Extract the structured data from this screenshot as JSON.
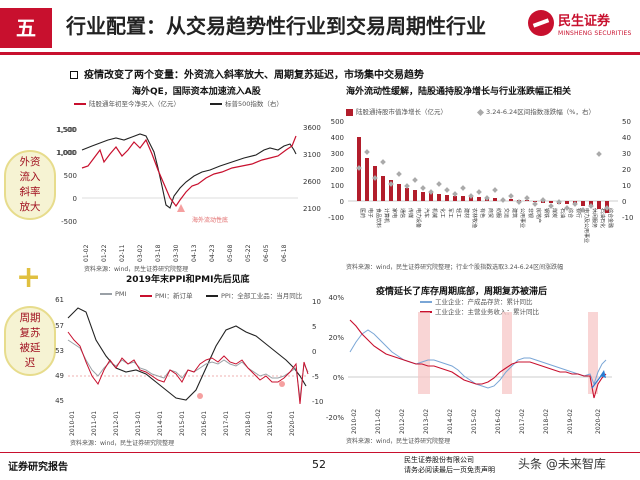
{
  "header": {
    "number": "五",
    "title": "行业配置：从交易趋势性行业到交易周期性行业",
    "logo_cn": "民生证券",
    "logo_en": "MINSHENG SECURITIES"
  },
  "bullet": "疫情改变了两个变量：外资流入斜率放大、周期复苏延迟，市场集中交易趋势",
  "side_labels": {
    "top": "外资流入斜率放大",
    "bottom": "周期复苏被延迟",
    "plus": "+"
  },
  "chart1": {
    "title": "海外QE，国际资本加速流入A股",
    "legend_a": "陆股通年初至今净买入（亿元）",
    "legend_b": "标普500指数（右）",
    "annotation": "海外流动性底",
    "source": "资料来源：wind，民生证券研究院整理",
    "left_ticks": [
      "1,500",
      "1,000",
      "500",
      "0",
      "-500"
    ],
    "right_ticks": [
      "3600",
      "3100",
      "2600",
      "2100"
    ],
    "x_ticks": [
      "01-02",
      "01-22",
      "02-11",
      "03-02",
      "03-18",
      "03-30",
      "04-13",
      "04-23",
      "05-08",
      "05-22",
      "06-05",
      "06-18"
    ]
  },
  "chart2": {
    "title": "海外流动性缓解，陆股通持股净增长与行业涨跌幅正相关",
    "legend_a": "陆股通持股市值净增长（亿元）",
    "legend_b": "3.24-6.24区间指数涨跌幅（%，右）",
    "source": "资料来源：wind，民生证券研究院整理；行业个股指数选取3.24-6.24区间涨跌幅",
    "left_ticks": [
      "500",
      "400",
      "300",
      "200",
      "100",
      "0",
      "-100"
    ],
    "right_ticks": [
      "50",
      "40",
      "30",
      "20",
      "10",
      "0",
      "-10"
    ],
    "categories": [
      "医药",
      "电子",
      "食品饮料",
      "计算机",
      "家电",
      "通信",
      "传媒",
      "电力设备",
      "汽车",
      "机械",
      "化工",
      "军工",
      "轻工",
      "建材",
      "农林牧渔",
      "有色",
      "商贸",
      "纺服",
      "交运",
      "建筑",
      "公用事业",
      "非银",
      "房地产",
      "钢铁",
      "煤炭",
      "石油",
      "综合",
      "银行",
      "电力及公用事业",
      "休闲服务",
      "石油石化",
      "综合金融",
      "通信运营",
      "消费者服务"
    ]
  },
  "chart3": {
    "title": "2019年末PPI和PMI先后见底",
    "legend_a": "PMI",
    "legend_b": "PMI：新订单",
    "legend_c": "PPI：全部工业品：当月同比",
    "source": "资料来源：wind，民生证券研究院整理",
    "left_ticks": [
      "61",
      "57",
      "53",
      "49",
      "45"
    ],
    "right_ticks": [
      "10",
      "5",
      "0",
      "-5",
      "-10"
    ],
    "x_ticks": [
      "2010-01",
      "2011-01",
      "2012-01",
      "2013-01",
      "2014-01",
      "2015-01",
      "2016-01",
      "2017-01",
      "2018-01",
      "2019-01",
      "2020-01"
    ]
  },
  "chart4": {
    "title": "疫情延长了库存周期底部，周期复苏被滞后",
    "legend_a": "工业企业：产成品存货：累计同比",
    "legend_b": "工业企业：主营业务收入：累计同比",
    "source": "资料来源：wind，民生证券研究院整理",
    "left_ticks": [
      "40%",
      "20%",
      "0%",
      "-20%"
    ],
    "x_ticks": [
      "2010-02",
      "2011-02",
      "2012-02",
      "2013-02",
      "2014-02",
      "2015-02",
      "2016-02",
      "2017-02",
      "2018-02",
      "2019-02",
      "2020-02"
    ]
  },
  "footer": {
    "left": "证券研究报告",
    "page": "52",
    "right_line1": "民生证券股份有限公司",
    "right_line2": "请务必阅读最后一页免责声明",
    "watermark": "头条 @未来智库"
  },
  "colors": {
    "brand": "#c8102e",
    "gray": "#9aa0a6",
    "blue": "#7aa6d6",
    "circle": "#f6f3d3"
  }
}
